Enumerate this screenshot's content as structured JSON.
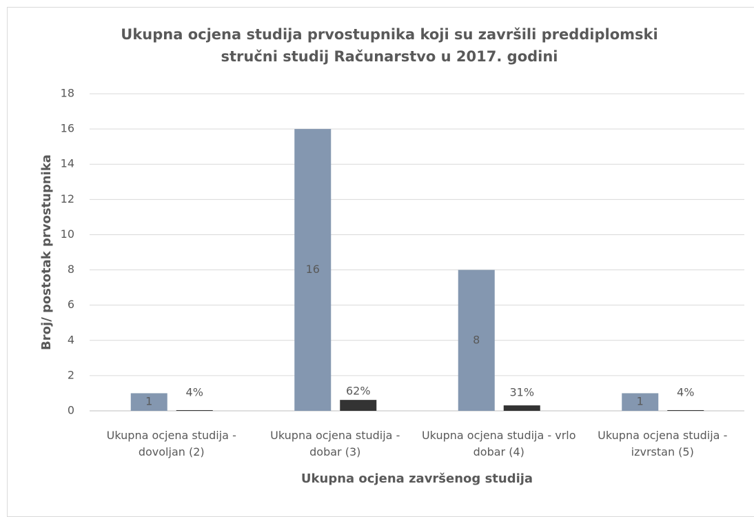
{
  "chart_data": {
    "type": "bar",
    "title": "Ukupna ocjena studija prvostupnika koji su završili preddiplomski stručni studij Računarstvo u 2017. godini",
    "x_label": "Ukupna ocjena završenog studija",
    "y_label": "Broj/ postotak prvostupnika",
    "categories": [
      "Ukupna ocjena studija - dovoljan (2)",
      "Ukupna ocjena studija - dobar (3)",
      "Ukupna ocjena studija - vrlo dobar (4)",
      "Ukupna ocjena studija - izvrstan (5)"
    ],
    "series": [
      {
        "color": "#8497b0",
        "values": [
          1,
          16,
          8,
          1
        ]
      },
      {
        "color": "#333333",
        "values": [
          0.04,
          0.62,
          0.31,
          0.04
        ],
        "value_labels": [
          "4%",
          "62%",
          "31%",
          "4%"
        ]
      }
    ],
    "ylim": [
      0,
      18
    ],
    "yticks": [
      0,
      2,
      4,
      6,
      8,
      10,
      12,
      14,
      16,
      18
    ],
    "grid": true
  }
}
